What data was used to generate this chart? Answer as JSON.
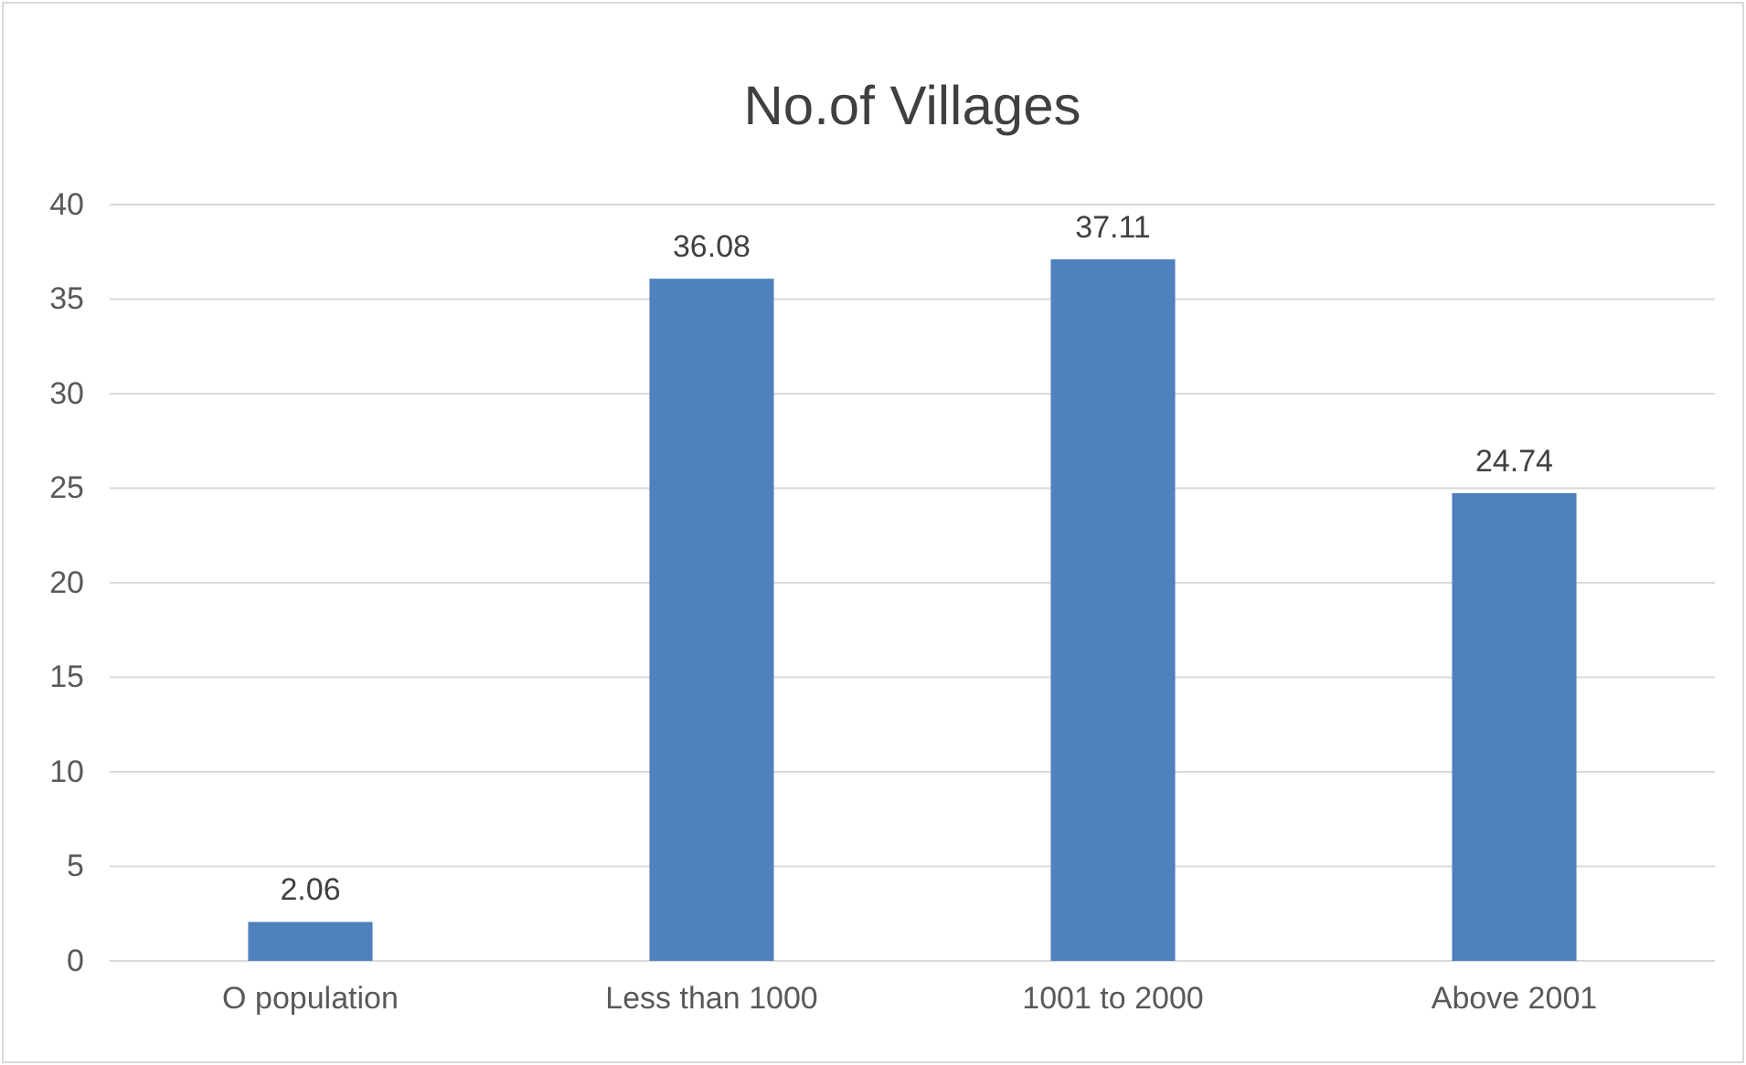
{
  "chart_data": {
    "type": "bar",
    "title": "No.of Villages",
    "categories": [
      "O population",
      "Less than 1000",
      "1001 to 2000",
      "Above 2001"
    ],
    "values": [
      2.06,
      36.08,
      37.11,
      24.74
    ],
    "color": "#4f81bd",
    "ylim": [
      0,
      40
    ],
    "yticks": [
      0,
      5,
      10,
      15,
      20,
      25,
      30,
      35,
      40
    ],
    "grid": "y",
    "data_labels": true
  }
}
